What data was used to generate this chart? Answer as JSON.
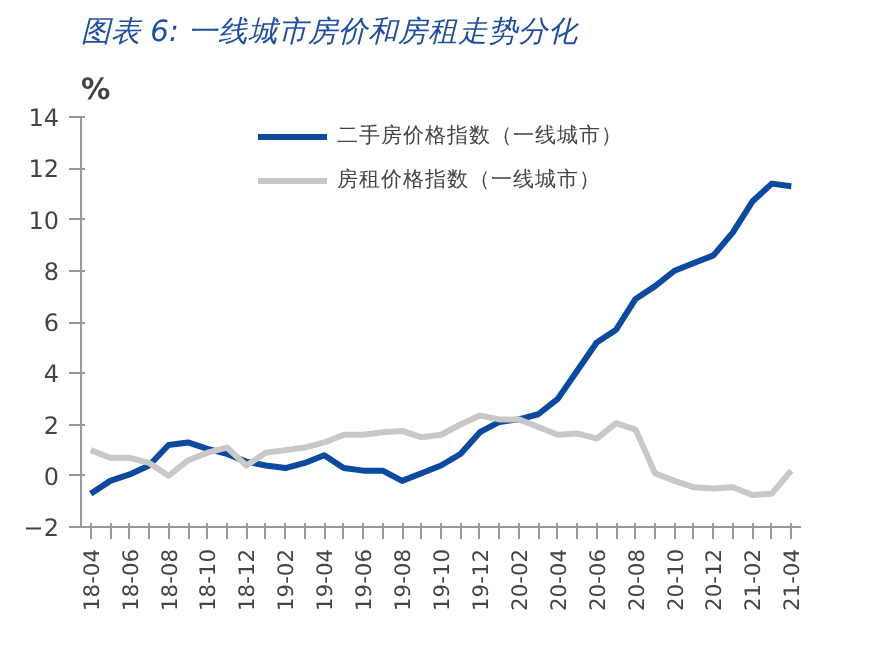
{
  "chart_data": {
    "type": "line",
    "title": "图表 6: 一线城市房价和房租走势分化",
    "ylabel": "%",
    "categories": [
      "18-04",
      null,
      "18-06",
      null,
      "18-08",
      null,
      "18-10",
      null,
      "18-12",
      null,
      "19-02",
      null,
      "19-04",
      null,
      "19-06",
      null,
      "19-08",
      null,
      "19-10",
      null,
      "19-12",
      null,
      "20-02",
      null,
      "20-04",
      null,
      "20-06",
      null,
      "20-08",
      null,
      "20-10",
      null,
      "20-12",
      null,
      "21-02",
      null,
      "21-04"
    ],
    "series": [
      {
        "name": "二手房价格指数（一线城市）",
        "color": "#0b4a9e",
        "values": [
          -0.7,
          -0.2,
          0.05,
          0.4,
          1.2,
          1.3,
          1.05,
          0.85,
          0.55,
          0.4,
          0.3,
          0.5,
          0.8,
          0.3,
          0.2,
          0.2,
          -0.2,
          0.1,
          0.4,
          0.85,
          1.7,
          2.1,
          2.2,
          2.4,
          3.0,
          4.1,
          5.2,
          5.7,
          6.9,
          7.4,
          8.0,
          8.3,
          8.6,
          9.5,
          10.7,
          11.4,
          11.3
        ]
      },
      {
        "name": "房租价格指数（一线城市）",
        "color": "#c8c8c8",
        "values": [
          1.0,
          0.7,
          0.7,
          0.5,
          0.0,
          0.6,
          0.9,
          1.1,
          0.4,
          0.9,
          1.0,
          1.1,
          1.3,
          1.6,
          1.6,
          1.7,
          1.75,
          1.5,
          1.6,
          2.0,
          2.35,
          2.2,
          2.2,
          1.9,
          1.6,
          1.65,
          1.45,
          2.05,
          1.8,
          0.1,
          -0.2,
          -0.45,
          -0.5,
          -0.45,
          -0.75,
          -0.7,
          0.2
        ]
      }
    ],
    "ylim": [
      -2,
      14
    ],
    "yticks": [
      -2,
      0,
      2,
      4,
      6,
      8,
      10,
      12,
      14
    ],
    "grid": false,
    "legend": "top",
    "line_style": "solid",
    "marker": "none"
  }
}
